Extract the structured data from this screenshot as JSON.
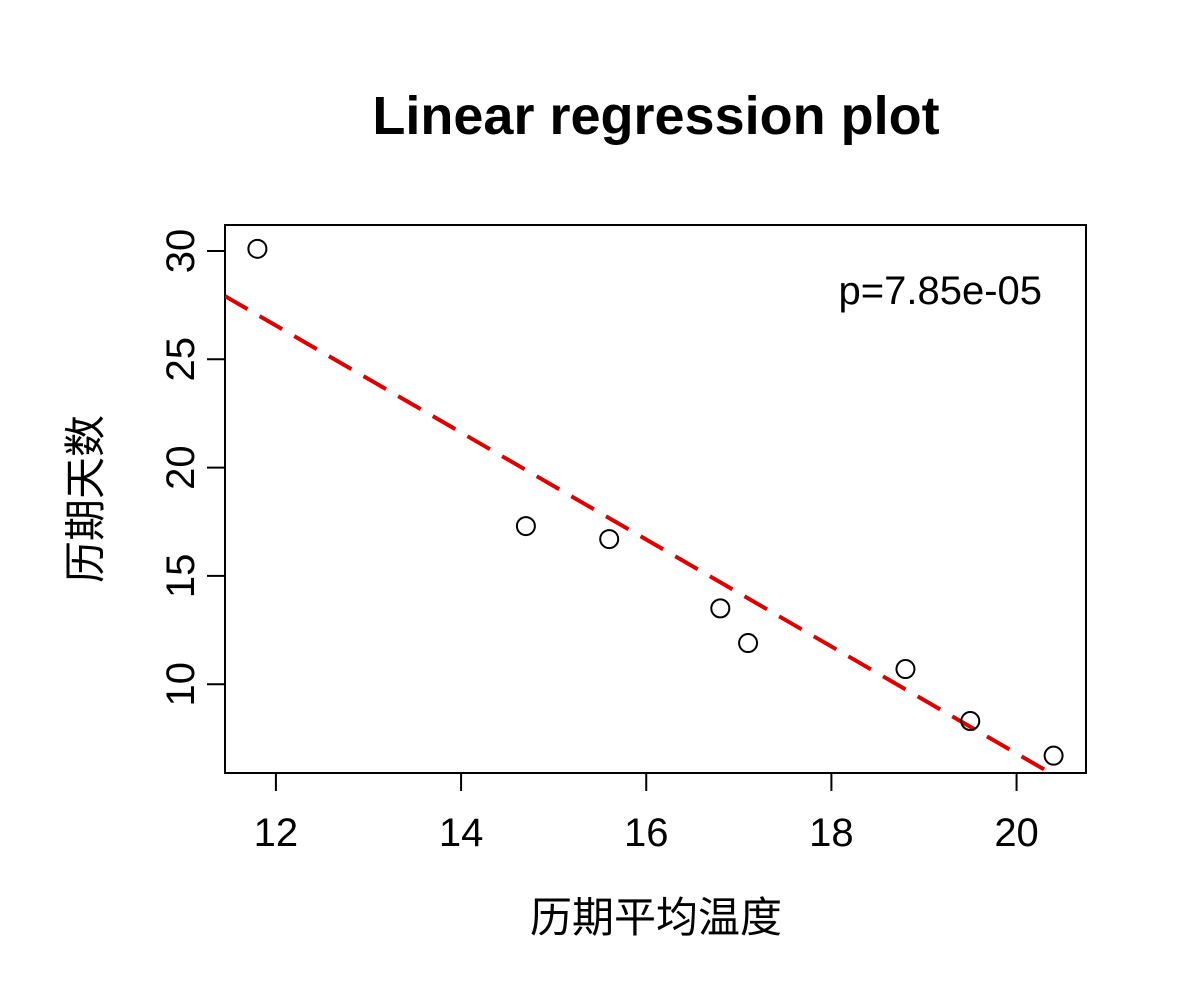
{
  "chart_data": {
    "type": "scatter",
    "title": "Linear regression plot",
    "xlabel": "历期平均温度",
    "ylabel": "历期天数",
    "annotation": "p=7.85e-05",
    "xlim": [
      11.45,
      20.75
    ],
    "ylim": [
      5.9,
      31.2
    ],
    "xticks": [
      12,
      14,
      16,
      18,
      20
    ],
    "yticks": [
      10,
      15,
      20,
      25,
      30
    ],
    "grid": false,
    "legend": "none",
    "points": [
      {
        "x": 11.8,
        "y": 30.1
      },
      {
        "x": 14.7,
        "y": 17.3
      },
      {
        "x": 15.6,
        "y": 16.7
      },
      {
        "x": 16.8,
        "y": 13.5
      },
      {
        "x": 17.1,
        "y": 11.9
      },
      {
        "x": 18.8,
        "y": 10.7
      },
      {
        "x": 19.5,
        "y": 8.3
      },
      {
        "x": 20.4,
        "y": 6.7
      }
    ],
    "regression": {
      "intercept": 56.2,
      "slope": -2.47,
      "style": "dashed"
    },
    "colors": {
      "points": "#000000",
      "regression": "#dd0000",
      "frame": "#000000"
    }
  }
}
